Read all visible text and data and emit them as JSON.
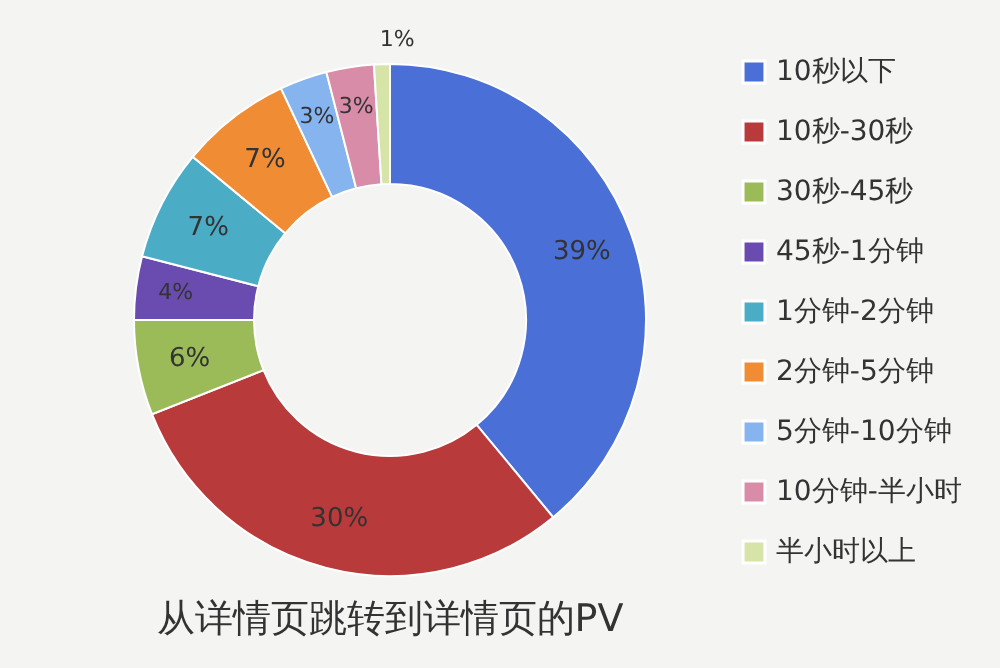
{
  "chart_data": {
    "type": "donut",
    "title": "从详情页跳转到详情页的PV",
    "categories": [
      "10秒以下",
      "10秒-30秒",
      "30秒-45秒",
      "45秒-1分钟",
      "1分钟-2分钟",
      "2分钟-5分钟",
      "5分钟-10分钟",
      "10分钟-半小时",
      "半小时以上"
    ],
    "values": [
      39,
      30,
      6,
      4,
      7,
      7,
      3,
      3,
      1
    ],
    "value_labels": [
      "39%",
      "30%",
      "6%",
      "4%",
      "7%",
      "7%",
      "3%",
      "3%",
      "1%"
    ],
    "colors": [
      "#4a6fd6",
      "#b83a3a",
      "#9bbb59",
      "#6a4bb0",
      "#4bacc6",
      "#f08c34",
      "#86b4ef",
      "#d98ca8",
      "#d7e4a8"
    ],
    "legend": "right"
  }
}
